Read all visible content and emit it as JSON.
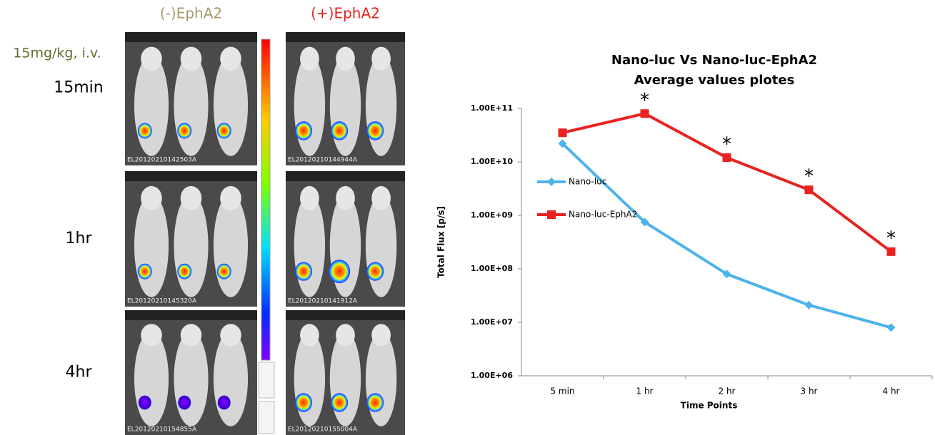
{
  "panels": {
    "columns": [
      {
        "label": "(-)EphA2",
        "color": "#a89a6e"
      },
      {
        "label": "(+)EphA2",
        "color": "#e8231f"
      }
    ],
    "dose": "15mg/kg, i.v.",
    "rows": [
      "15min",
      "1hr",
      "4hr"
    ],
    "image_ids": [
      [
        "EL20120210142503A",
        "EL20120210144944A"
      ],
      [
        "EL20120210145320A",
        "EL20120210141912A"
      ],
      [
        "EL20120210154855A",
        "EL20120210155004A"
      ]
    ]
  },
  "chart_data": {
    "type": "line",
    "title": [
      "Nano-luc Vs Nano-luc-EphA2",
      "Average values plotes"
    ],
    "x_label": "Time Points",
    "y_label": "Total Flux [p/s]",
    "categories": [
      "5 min",
      "1 hr",
      "2 hr",
      "3 hr",
      "4 hr"
    ],
    "log_y": true,
    "ylim": [
      1000000,
      100000000000
    ],
    "yticks": [
      {
        "value": 1000000,
        "label": "1.00E+06"
      },
      {
        "value": 10000000,
        "label": "1.00E+07"
      },
      {
        "value": 100000000,
        "label": "1.00E+08"
      },
      {
        "value": 1000000000,
        "label": "1.00E+09"
      },
      {
        "value": 10000000000,
        "label": "1.00E+10"
      },
      {
        "value": 100000000000,
        "label": "1.00E+11"
      }
    ],
    "grid": false,
    "legend": "left",
    "series": [
      {
        "name": "Nano-luc",
        "color": "#4db3ea",
        "marker": "diamond",
        "values": [
          22000000000,
          750000000,
          80000000,
          21000000,
          8000000
        ]
      },
      {
        "name": "Nano-luc-EphA2",
        "color": "#e8231f",
        "marker": "square",
        "values": [
          35000000000,
          80000000000,
          12000000000,
          3000000000,
          210000000
        ]
      }
    ],
    "annotations": [
      {
        "text": "*",
        "x": "1 hr"
      },
      {
        "text": "*",
        "x": "2 hr"
      },
      {
        "text": "*",
        "x": "3 hr"
      },
      {
        "text": "*",
        "x": "4 hr"
      }
    ]
  }
}
